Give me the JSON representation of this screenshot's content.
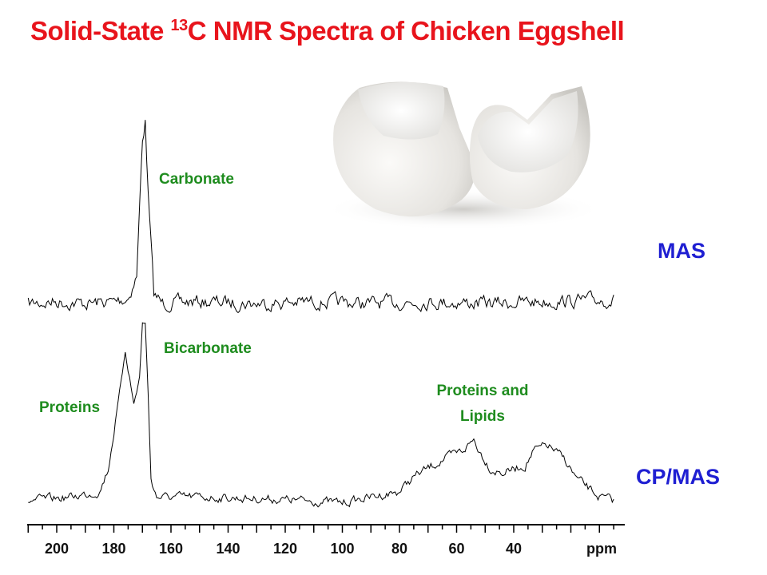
{
  "title": {
    "prefix": "Solid-State ",
    "superscript": "13",
    "suffix": "C NMR Spectra of Chicken Eggshell"
  },
  "chart_data": {
    "type": "line",
    "title": "Solid-State 13C NMR Spectra of Chicken Eggshell",
    "xlabel": "ppm",
    "xlim": [
      210,
      0
    ],
    "ticks": [
      200,
      180,
      160,
      140,
      120,
      100,
      80,
      60,
      40
    ],
    "series": [
      {
        "name": "MAS",
        "x": [
          210,
          200,
          190,
          180,
          175,
          172,
          170,
          169,
          168,
          166,
          163,
          150,
          130,
          110,
          90,
          70,
          50,
          30,
          5
        ],
        "values": [
          0,
          0.01,
          0,
          0.01,
          0.03,
          0.15,
          0.9,
          1.0,
          0.6,
          0.05,
          0,
          0.01,
          0,
          0.01,
          0,
          0.01,
          0,
          0.01,
          0.02
        ]
      },
      {
        "name": "CP/MAS",
        "x": [
          210,
          195,
          185,
          182,
          178,
          176,
          173,
          171,
          170,
          169,
          168,
          167,
          165,
          150,
          125,
          100,
          80,
          75,
          65,
          58,
          54,
          52,
          48,
          44,
          40,
          36,
          33,
          28,
          22,
          18,
          10,
          5
        ],
        "values": [
          0.03,
          0.05,
          0.08,
          0.2,
          0.6,
          0.85,
          0.55,
          0.7,
          0.98,
          1.0,
          0.6,
          0.15,
          0.05,
          0.05,
          0.04,
          0.02,
          0.08,
          0.16,
          0.25,
          0.3,
          0.36,
          0.3,
          0.2,
          0.18,
          0.2,
          0.22,
          0.3,
          0.33,
          0.25,
          0.15,
          0.05,
          0.03
        ]
      }
    ],
    "annotations": {
      "carbonate": "Carbonate",
      "bicarbonate": "Bicarbonate",
      "proteins": "Proteins",
      "proteins_lipids_1": "Proteins and",
      "proteins_lipids_2": "Lipids"
    },
    "series_labels": {
      "mas": "MAS",
      "cpmas": "CP/MAS"
    }
  },
  "colors": {
    "title": "#e8141c",
    "annotation": "#1e8c1e",
    "series_label": "#1f1fd2",
    "trace": "#000000"
  }
}
